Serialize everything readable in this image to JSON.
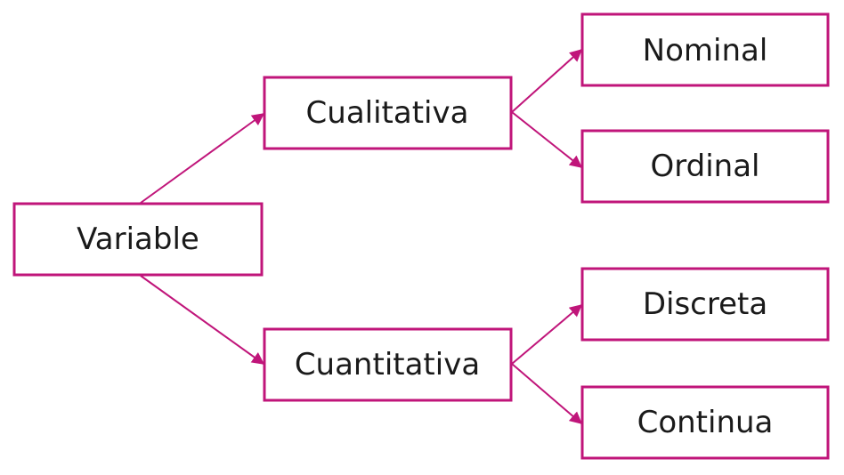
{
  "colors": {
    "accent": "#c0157a",
    "text": "#1a1a1a",
    "background": "#ffffff"
  },
  "nodes": {
    "variable": "Variable",
    "cualitativa": "Cualitativa",
    "cuantitativa": "Cuantitativa",
    "nominal": "Nominal",
    "ordinal": "Ordinal",
    "discreta": "Discreta",
    "continua": "Continua"
  },
  "edges": [
    {
      "from": "variable",
      "to": "cualitativa"
    },
    {
      "from": "variable",
      "to": "cuantitativa"
    },
    {
      "from": "cualitativa",
      "to": "nominal"
    },
    {
      "from": "cualitativa",
      "to": "ordinal"
    },
    {
      "from": "cuantitativa",
      "to": "discreta"
    },
    {
      "from": "cuantitativa",
      "to": "continua"
    }
  ]
}
